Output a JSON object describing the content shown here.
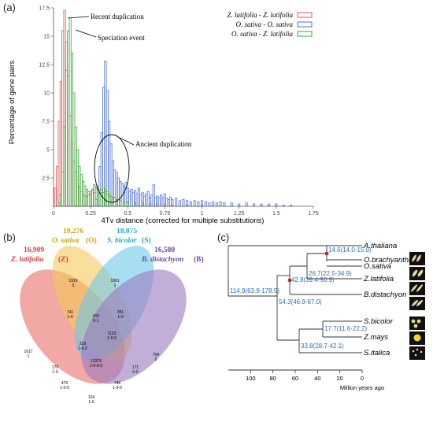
{
  "panel_labels": {
    "a": "(a)",
    "b": "(b)",
    "c": "(c)"
  },
  "chart_data": [
    {
      "type": "bar",
      "ylabel": "Percentage of gene pairs",
      "xlabel": "4Tv distance (corrected for multiple substitutions)",
      "xlim": [
        0,
        1.75
      ],
      "ylim": [
        0,
        17.5
      ],
      "x_ticks": [
        "0",
        "0.25",
        "0.5",
        "0.75",
        "1",
        "1.25",
        "1.5",
        "1.75"
      ],
      "y_ticks": [
        "2.5",
        "5",
        "7.5",
        "10",
        "12.5",
        "15",
        "17.5"
      ],
      "bin_width": 0.0125,
      "legend_position": "top-right",
      "series": [
        {
          "name": "Z. latifolia - Z. latifolia",
          "color": "#e05252",
          "x": [
            0.0125,
            0.025,
            0.0375,
            0.05,
            0.0625,
            0.075,
            0.0875,
            0.1,
            0.1125,
            0.125,
            0.1375,
            0.15,
            0.1625,
            0.175,
            0.1875,
            0.2,
            0.2125,
            0.225,
            0.2375,
            0.25,
            0.2625,
            0.275,
            0.2875,
            0.3,
            0.3125,
            0.325,
            0.3375,
            0.35,
            0.3625,
            0.375,
            0.3875,
            0.4,
            0.4125,
            0.425,
            0.4375,
            0.45,
            0.475,
            0.5,
            0.55,
            0.6,
            0.65,
            0.7,
            0.75,
            0.8,
            0.9,
            1.0
          ],
          "values": [
            1.6,
            3.5,
            7.5,
            11,
            15.5,
            17.3,
            14.5,
            11.5,
            8,
            5.5,
            4,
            3,
            2.3,
            1.7,
            1.3,
            1.0,
            0.9,
            0.9,
            1.0,
            1.3,
            1.5,
            1.2,
            1.6,
            1.8,
            1.4,
            1.5,
            1.2,
            1.3,
            1.0,
            0.9,
            0.9,
            0.7,
            0.8,
            0.6,
            0.6,
            0.5,
            0.4,
            0.4,
            0.3,
            0.3,
            0.2,
            0.2,
            0.2,
            0.1,
            0.1,
            0.1
          ]
        },
        {
          "name": "O. sativa - O. sativa",
          "color": "#4a6fd8",
          "x": [
            0.2875,
            0.3,
            0.3125,
            0.325,
            0.3375,
            0.35,
            0.3625,
            0.375,
            0.3875,
            0.4,
            0.4125,
            0.425,
            0.4375,
            0.45,
            0.4625,
            0.475,
            0.4875,
            0.5,
            0.5125,
            0.525,
            0.5375,
            0.55,
            0.5625,
            0.575,
            0.5875,
            0.6,
            0.6125,
            0.625,
            0.6375,
            0.65,
            0.6625,
            0.675,
            0.6875,
            0.7,
            0.7125,
            0.725,
            0.7375,
            0.75,
            0.7625,
            0.775,
            0.7875,
            0.8,
            0.825,
            0.85,
            0.875,
            0.9,
            0.925,
            0.95,
            0.975,
            1.0,
            1.025,
            1.05,
            1.075,
            1.1,
            1.125,
            1.15,
            1.2,
            1.25,
            1.3,
            1.35,
            1.4,
            1.45,
            1.5,
            1.55,
            1.6
          ],
          "values": [
            0.6,
            1.5,
            3.5,
            6.5,
            10.5,
            12.8,
            10.2,
            7.5,
            5.5,
            4.0,
            3.2,
            3.0,
            2.5,
            2.2,
            2.0,
            1.8,
            2.1,
            1.6,
            1.3,
            1.5,
            1.2,
            1.4,
            1.1,
            1.6,
            1.0,
            1.2,
            0.9,
            1.1,
            1.3,
            0.8,
            1.0,
            1.9,
            0.8,
            0.9,
            0.7,
            1.0,
            0.8,
            1.1,
            0.7,
            0.6,
            0.8,
            0.6,
            0.7,
            0.5,
            0.6,
            0.5,
            0.4,
            0.5,
            0.4,
            0.5,
            0.4,
            0.3,
            0.4,
            0.3,
            0.4,
            0.3,
            0.3,
            0.2,
            0.3,
            0.2,
            0.2,
            0.2,
            0.2,
            0.1,
            0.1
          ]
        },
        {
          "name": "O. sativa - Z. latifolia",
          "color": "#3aa83a",
          "x": [
            0.0375,
            0.05,
            0.0625,
            0.075,
            0.0875,
            0.1,
            0.1125,
            0.125,
            0.1375,
            0.15,
            0.1625,
            0.175,
            0.1875,
            0.2,
            0.2125,
            0.225,
            0.2375,
            0.25,
            0.2625,
            0.275,
            0.2875,
            0.3,
            0.3125,
            0.325,
            0.3375,
            0.35,
            0.3625,
            0.375,
            0.3875,
            0.4,
            0.425,
            0.45,
            0.475,
            0.5,
            0.55,
            0.6
          ],
          "values": [
            0.3,
            1.0,
            3.0,
            7.0,
            12.0,
            15.5,
            16.6,
            13.5,
            10.0,
            7.0,
            5.0,
            3.5,
            2.8,
            2.2,
            1.8,
            1.5,
            1.3,
            1.1,
            1.4,
            1.9,
            1.7,
            1.5,
            1.4,
            1.2,
            1.7,
            1.5,
            1.3,
            1.1,
            0.9,
            0.8,
            0.6,
            0.5,
            0.4,
            0.3,
            0.2,
            0.1
          ]
        }
      ],
      "annotations": [
        "Recent duplication",
        "Speciation event",
        "Ancient duplication"
      ]
    },
    {
      "type": "table",
      "diagram": "venn",
      "sets": [
        {
          "key": "Z",
          "count": "16,909",
          "label": "Z. latifolia",
          "suffix": "(Z)",
          "color": "#d94040"
        },
        {
          "key": "O",
          "count": "19,276",
          "label": "O. sativa",
          "suffix": "(O)",
          "color": "#c8a400"
        },
        {
          "key": "S",
          "count": "18,075",
          "label": "S. bicolor",
          "suffix": "(S)",
          "color": "#1aa5d0"
        },
        {
          "key": "B",
          "count": "16,580",
          "label": "B. distachyon",
          "suffix": "(B)",
          "color": "#6a4a9a"
        }
      ],
      "regions": [
        {
          "l1": "1919",
          "l2": "0"
        },
        {
          "l1": "1961",
          "l2": "1"
        },
        {
          "l1": "1617",
          "l2": "1"
        },
        {
          "l1": "704",
          "l2": "0"
        },
        {
          "l1": "741",
          "l2": "1-0"
        },
        {
          "l1": "415",
          "l2": "0-1"
        },
        {
          "l1": "351",
          "l2": "1-0"
        },
        {
          "l1": "229",
          "l2": "1-0-2"
        },
        {
          "l1": "1133",
          "l2": "1-0-0"
        },
        {
          "l1": "13379",
          "l2": "1-0-0-0"
        },
        {
          "l1": "179",
          "l2": "1-0"
        },
        {
          "l1": "171",
          "l2": "0-0"
        },
        {
          "l1": "476",
          "l2": "1-0-0"
        },
        {
          "l1": "746",
          "l2": "1-0-0"
        },
        {
          "l1": "134",
          "l2": "1-0"
        }
      ]
    },
    {
      "type": "table",
      "diagram": "phylogenetic-tree",
      "taxa": [
        "A.thaliana",
        "O.brachyantha",
        "O.sativa",
        "Z.latifolia",
        "B.distachyon",
        "S.bicolor",
        "Z.mays",
        "S.italica"
      ],
      "node_labels": [
        "114.9(63.9-178.5)",
        "14.6(14.0-15.0)",
        "26.7(22.5-34.9)",
        "42.8(39.4-50.9)",
        "54.3(46.9-67.0)",
        "17.7(11.6-22.2)",
        "33.8(28.7-42.1)"
      ],
      "axis_ticks": [
        "100",
        "80",
        "60",
        "40",
        "20",
        "0"
      ],
      "axis_label": "Million years ago",
      "node_label_color": "#2e6fb0",
      "marker_color": "#c0272d"
    }
  ]
}
